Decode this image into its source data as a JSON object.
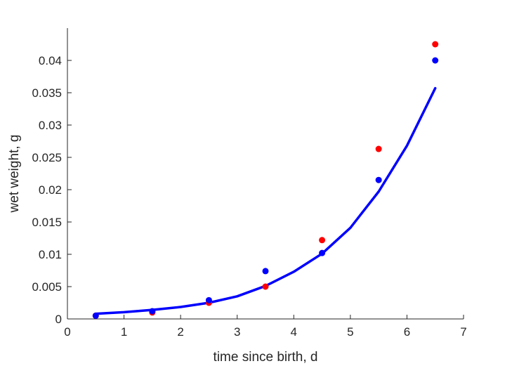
{
  "chart_data": {
    "type": "scatter",
    "title": "",
    "xlabel": "time since birth, d",
    "ylabel": "wet weight, g",
    "xlim": [
      0,
      7
    ],
    "ylim": [
      0,
      0.045
    ],
    "xticks": [
      0,
      1,
      2,
      3,
      4,
      5,
      6,
      7
    ],
    "xtick_labels": [
      "0",
      "1",
      "2",
      "3",
      "4",
      "5",
      "6",
      "7"
    ],
    "yticks": [
      0,
      0.005,
      0.01,
      0.015,
      0.02,
      0.025,
      0.03,
      0.035,
      0.04
    ],
    "ytick_labels": [
      "0",
      "0.005",
      "0.01",
      "0.015",
      "0.02",
      "0.025",
      "0.03",
      "0.035",
      "0.04"
    ],
    "grid": false,
    "series": [
      {
        "type": "scatter",
        "color": "#ff0000",
        "x": [
          0.5,
          1.5,
          2.5,
          3.5,
          4.5,
          5.5,
          6.5
        ],
        "y": [
          0.0005,
          0.001,
          0.0025,
          0.005,
          0.0122,
          0.0263,
          0.0425
        ]
      },
      {
        "type": "scatter",
        "color": "#0000ff",
        "x": [
          0.5,
          1.5,
          2.5,
          3.5,
          4.5,
          5.5,
          6.5
        ],
        "y": [
          0.0005,
          0.0012,
          0.0029,
          0.0074,
          0.0102,
          0.0215,
          0.04
        ]
      },
      {
        "type": "line",
        "color": "#0000ff",
        "x": [
          0.5,
          1.0,
          1.5,
          2.0,
          2.5,
          3.0,
          3.5,
          4.0,
          4.5,
          5.0,
          5.5,
          6.0,
          6.5
        ],
        "y": [
          0.0008,
          0.00105,
          0.0014,
          0.00185,
          0.0025,
          0.0035,
          0.0051,
          0.0073,
          0.0101,
          0.0141,
          0.0197,
          0.0268,
          0.0357
        ]
      }
    ]
  }
}
